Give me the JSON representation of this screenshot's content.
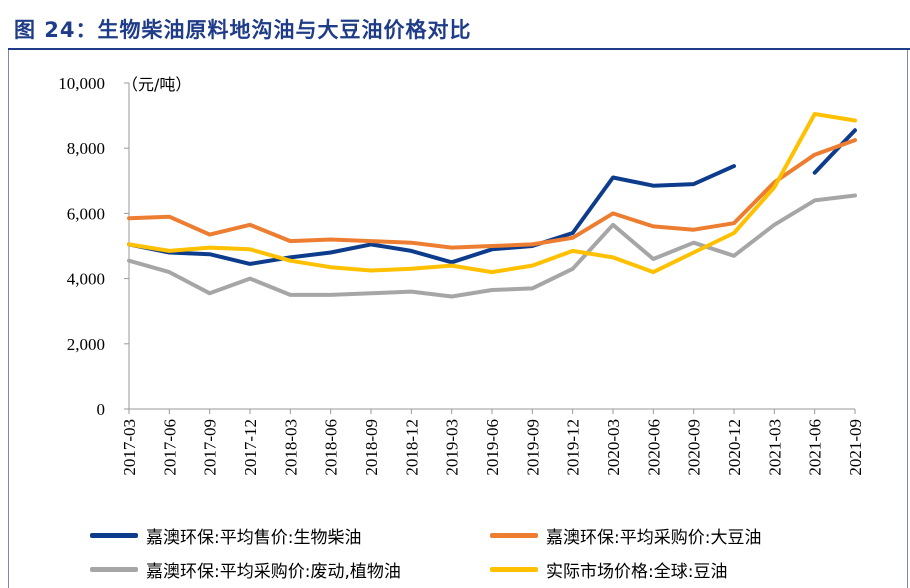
{
  "header": {
    "title": "图 24：生物柴油原料地沟油与大豆油价格对比"
  },
  "chart_data": {
    "type": "line",
    "unit_label": "（元/吨）",
    "x": [
      "2017-03",
      "2017-06",
      "2017-09",
      "2017-12",
      "2018-03",
      "2018-06",
      "2018-09",
      "2018-12",
      "2019-03",
      "2019-06",
      "2019-09",
      "2019-12",
      "2020-03",
      "2020-06",
      "2020-09",
      "2020-12",
      "2021-03",
      "2021-06",
      "2021-09"
    ],
    "ylim": [
      0,
      10000
    ],
    "yticks": [
      0,
      2000,
      4000,
      6000,
      8000,
      10000
    ],
    "ytick_labels": [
      "0",
      "2,000",
      "4,000",
      "6,000",
      "8,000",
      "10,000"
    ],
    "grid": false,
    "legend_position": "bottom",
    "series": [
      {
        "name": "嘉澳环保:平均售价:生物柴油",
        "color": "#0d3c8c",
        "values": [
          5050,
          4800,
          4750,
          4450,
          4650,
          4800,
          5050,
          4850,
          4500,
          4900,
          5000,
          5400,
          7100,
          6850,
          6900,
          7450,
          null,
          7250,
          8550
        ]
      },
      {
        "name": "嘉澳环保:平均采购价:大豆油",
        "color": "#ed7d31",
        "values": [
          5850,
          5900,
          5350,
          5650,
          5150,
          5200,
          5150,
          5100,
          4950,
          5000,
          5050,
          5250,
          6000,
          5600,
          5500,
          5700,
          6950,
          7800,
          8250
        ]
      },
      {
        "name": "嘉澳环保:平均采购价:废动,植物油",
        "color": "#a6a6a6",
        "values": [
          4550,
          4200,
          3550,
          4000,
          3500,
          3500,
          3550,
          3600,
          3450,
          3650,
          3700,
          4300,
          5650,
          4600,
          5100,
          4700,
          5650,
          6400,
          6550
        ]
      },
      {
        "name": "实际市场价格:全球:豆油",
        "color": "#ffc000",
        "values": [
          5050,
          4850,
          4950,
          4900,
          4550,
          4350,
          4250,
          4300,
          4400,
          4200,
          4400,
          4850,
          4650,
          4200,
          4800,
          5400,
          6800,
          9050,
          8850
        ]
      }
    ]
  }
}
